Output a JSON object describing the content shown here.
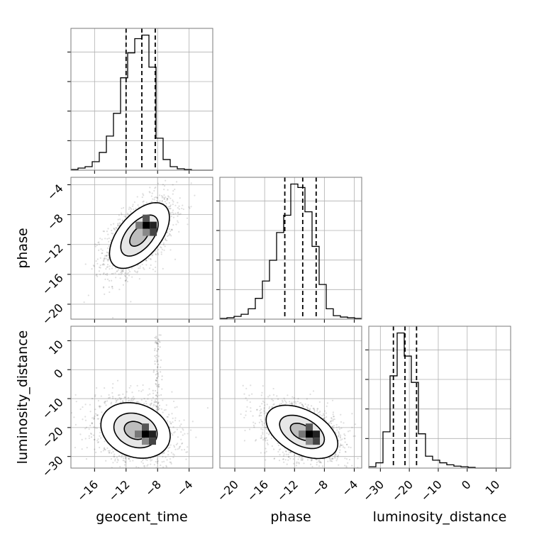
{
  "chart_data": {
    "type": "corner",
    "parameters": [
      "geocent_time",
      "phase",
      "luminosity_distance"
    ],
    "grid": true,
    "axes": {
      "geocent_time": {
        "label": "geocent_time",
        "range": [
          -19,
          -1
        ],
        "ticks": [
          -16,
          -12,
          -8,
          -4
        ],
        "tick_labels": [
          "−16",
          "−12",
          "−8",
          "−4"
        ]
      },
      "phase": {
        "label": "phase",
        "range": [
          -22,
          -3
        ],
        "ticks": [
          -20,
          -16,
          -12,
          -8,
          -4
        ],
        "tick_labels": [
          "−20",
          "−16",
          "−12",
          "−8",
          "−4"
        ]
      },
      "luminosity_distance": {
        "label": "luminosity_distance",
        "range": [
          -34,
          15
        ],
        "ticks": [
          -30,
          -20,
          -10,
          0,
          10
        ],
        "tick_labels": [
          "−30",
          "−20",
          "−10",
          "0",
          "10"
        ]
      }
    },
    "marginals": {
      "geocent_time": {
        "bin_edges": [
          -19,
          -18.1,
          -17.2,
          -16.3,
          -15.4,
          -14.5,
          -13.6,
          -12.7,
          -11.8,
          -10.9,
          -10,
          -9.1,
          -8.2,
          -7.3,
          -6.4,
          -5.5,
          -4.6,
          -3.7,
          -2.8,
          -1.9,
          -1
        ],
        "counts": [
          1,
          3,
          5,
          12,
          25,
          48,
          80,
          130,
          165,
          185,
          190,
          145,
          45,
          15,
          5,
          2,
          1,
          0,
          0,
          0
        ],
        "quantiles": [
          -12,
          -10,
          -8.3
        ]
      },
      "phase": {
        "bin_edges": [
          -22,
          -21.05,
          -20.1,
          -19.15,
          -18.2,
          -17.25,
          -16.3,
          -15.35,
          -14.4,
          -13.45,
          -12.5,
          -11.55,
          -10.6,
          -9.65,
          -8.7,
          -7.75,
          -6.8,
          -5.85,
          -4.9,
          -3.95,
          -3
        ],
        "counts": [
          1,
          2,
          4,
          7,
          15,
          30,
          55,
          85,
          125,
          150,
          195,
          190,
          155,
          105,
          50,
          15,
          5,
          3,
          2,
          1
        ],
        "quantiles": [
          -13.3,
          -10.9,
          -9.1
        ]
      },
      "luminosity_distance": {
        "bin_edges": [
          -34,
          -31.55,
          -29.1,
          -26.65,
          -24.2,
          -21.75,
          -19.3,
          -16.85,
          -14.4,
          -11.95,
          -9.5,
          -7.05,
          -4.6,
          -2.15,
          0.3,
          2.75,
          5.2,
          7.65,
          10.1,
          12.55,
          15
        ],
        "counts": [
          2,
          8,
          55,
          140,
          205,
          170,
          130,
          52,
          18,
          12,
          8,
          5,
          3,
          2,
          1,
          0,
          0,
          0,
          0,
          0
        ],
        "quantiles": [
          -25.5,
          -21.5,
          -17.5
        ]
      }
    },
    "joints": [
      {
        "x": "geocent_time",
        "y": "phase",
        "center": [
          -10.3,
          -10.8
        ],
        "sigma": [
          1.9,
          2.2
        ],
        "rho": 0.55,
        "peak": [
          -9.9,
          -9.9
        ]
      },
      {
        "x": "geocent_time",
        "y": "luminosity_distance",
        "center": [
          -10.8,
          -21
        ],
        "sigma": [
          2.2,
          4.8
        ],
        "rho": -0.2,
        "peak": [
          -10,
          -23.5
        ]
      },
      {
        "x": "phase",
        "y": "luminosity_distance",
        "center": [
          -11,
          -21.5
        ],
        "sigma": [
          2.4,
          4.6
        ],
        "rho": -0.45,
        "peak": [
          -10.5,
          -23.5
        ]
      }
    ]
  }
}
